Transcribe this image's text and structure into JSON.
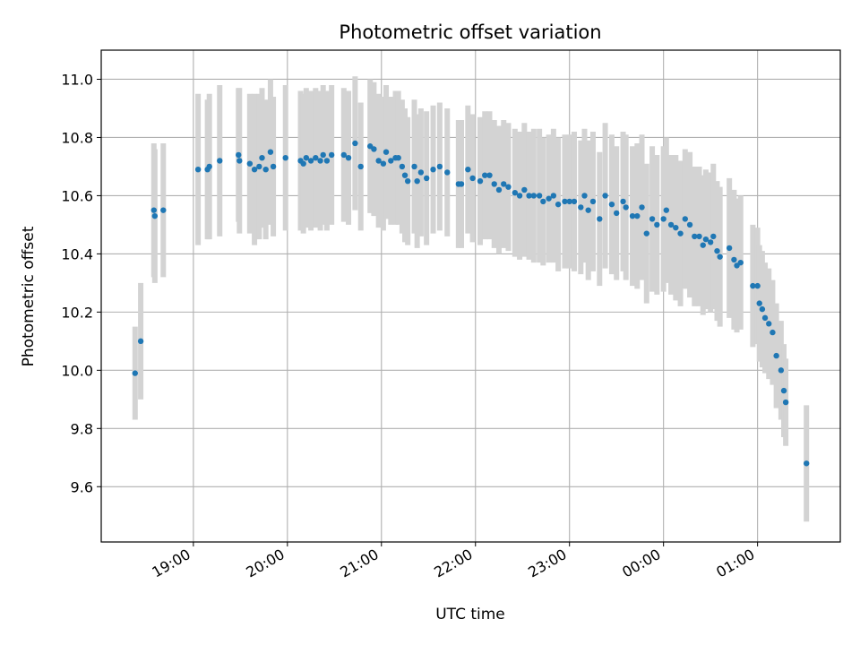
{
  "chart_data": {
    "type": "scatter",
    "title": "Photometric offset variation",
    "xlabel": "UTC time",
    "ylabel": "Photometric offset",
    "x_ticks": [
      "19:00",
      "20:00",
      "21:00",
      "22:00",
      "23:00",
      "00:00",
      "01:00"
    ],
    "x_tick_hours": [
      19,
      20,
      21,
      22,
      23,
      24,
      25
    ],
    "y_ticks": [
      "9.6",
      "9.8",
      "10.0",
      "10.2",
      "10.4",
      "10.6",
      "10.8",
      "11.0"
    ],
    "xlim_hours": [
      18.02,
      25.88
    ],
    "ylim": [
      9.41,
      11.1
    ],
    "grid": true,
    "point_color": "#1f77b4",
    "errorbar_color": "#d3d3d3",
    "series": [
      {
        "x_hours": [
          18.38,
          18.44,
          18.58,
          18.59,
          18.68,
          19.05,
          19.15,
          19.17,
          19.28,
          19.48,
          19.49,
          19.6,
          19.65,
          19.7,
          19.73,
          19.77,
          19.82,
          19.85,
          19.98,
          20.14,
          20.17,
          20.2,
          20.25,
          20.3,
          20.35,
          20.38,
          20.42,
          20.47,
          20.6,
          20.65,
          20.72,
          20.78,
          20.88,
          20.92,
          20.97,
          21.02,
          21.05,
          21.1,
          21.15,
          21.18,
          21.22,
          21.25,
          21.28,
          21.35,
          21.38,
          21.42,
          21.48,
          21.55,
          21.62,
          21.7,
          21.82,
          21.85,
          21.92,
          21.97,
          22.05,
          22.1,
          22.15,
          22.2,
          22.25,
          22.3,
          22.35,
          22.42,
          22.47,
          22.52,
          22.57,
          22.62,
          22.68,
          22.72,
          22.78,
          22.83,
          22.88,
          22.95,
          23.0,
          23.05,
          23.12,
          23.16,
          23.2,
          23.25,
          23.32,
          23.38,
          23.45,
          23.5,
          23.57,
          23.6,
          23.67,
          23.72,
          23.77,
          23.82,
          23.88,
          23.93,
          24.0,
          24.03,
          24.08,
          24.13,
          24.18,
          24.23,
          24.28,
          24.33,
          24.38,
          24.42,
          24.45,
          24.5,
          24.53,
          24.57,
          24.6,
          24.7,
          24.75,
          24.78,
          24.82,
          24.95,
          25.0,
          25.02,
          25.05,
          25.08,
          25.12,
          25.16,
          25.2,
          25.25,
          25.28,
          25.3,
          25.52
        ],
        "y": [
          9.99,
          10.1,
          10.55,
          10.53,
          10.55,
          10.69,
          10.69,
          10.7,
          10.72,
          10.74,
          10.72,
          10.71,
          10.69,
          10.7,
          10.73,
          10.69,
          10.75,
          10.7,
          10.73,
          10.72,
          10.71,
          10.73,
          10.72,
          10.73,
          10.72,
          10.74,
          10.72,
          10.74,
          10.74,
          10.73,
          10.78,
          10.7,
          10.77,
          10.76,
          10.72,
          10.71,
          10.75,
          10.72,
          10.73,
          10.73,
          10.7,
          10.67,
          10.65,
          10.7,
          10.65,
          10.68,
          10.66,
          10.69,
          10.7,
          10.68,
          10.64,
          10.64,
          10.69,
          10.66,
          10.65,
          10.67,
          10.67,
          10.64,
          10.62,
          10.64,
          10.63,
          10.61,
          10.6,
          10.62,
          10.6,
          10.6,
          10.6,
          10.58,
          10.59,
          10.6,
          10.57,
          10.58,
          10.58,
          10.58,
          10.56,
          10.6,
          10.55,
          10.58,
          10.52,
          10.6,
          10.57,
          10.54,
          10.58,
          10.56,
          10.53,
          10.53,
          10.56,
          10.47,
          10.52,
          10.5,
          10.52,
          10.55,
          10.5,
          10.49,
          10.47,
          10.52,
          10.5,
          10.46,
          10.46,
          10.43,
          10.45,
          10.44,
          10.46,
          10.41,
          10.39,
          10.42,
          10.38,
          10.36,
          10.37,
          10.29,
          10.29,
          10.23,
          10.21,
          10.18,
          10.16,
          10.13,
          10.05,
          10.0,
          9.93,
          9.89,
          9.68
        ],
        "yerr": [
          0.16,
          0.2,
          0.23,
          0.23,
          0.23,
          0.26,
          0.24,
          0.25,
          0.26,
          0.23,
          0.25,
          0.24,
          0.26,
          0.25,
          0.24,
          0.24,
          0.25,
          0.24,
          0.25,
          0.24,
          0.24,
          0.24,
          0.24,
          0.24,
          0.24,
          0.24,
          0.24,
          0.24,
          0.23,
          0.23,
          0.23,
          0.22,
          0.23,
          0.23,
          0.23,
          0.23,
          0.23,
          0.22,
          0.23,
          0.23,
          0.23,
          0.23,
          0.22,
          0.23,
          0.23,
          0.22,
          0.23,
          0.22,
          0.22,
          0.22,
          0.22,
          0.22,
          0.22,
          0.22,
          0.22,
          0.22,
          0.22,
          0.22,
          0.22,
          0.22,
          0.22,
          0.22,
          0.22,
          0.23,
          0.22,
          0.23,
          0.23,
          0.22,
          0.22,
          0.23,
          0.23,
          0.23,
          0.23,
          0.24,
          0.23,
          0.23,
          0.24,
          0.24,
          0.23,
          0.25,
          0.24,
          0.23,
          0.24,
          0.25,
          0.24,
          0.25,
          0.25,
          0.24,
          0.25,
          0.24,
          0.25,
          0.25,
          0.24,
          0.25,
          0.25,
          0.24,
          0.25,
          0.24,
          0.24,
          0.24,
          0.24,
          0.24,
          0.25,
          0.24,
          0.24,
          0.24,
          0.24,
          0.23,
          0.23,
          0.21,
          0.2,
          0.2,
          0.2,
          0.19,
          0.19,
          0.18,
          0.18,
          0.17,
          0.16,
          0.15,
          0.2
        ]
      }
    ]
  }
}
